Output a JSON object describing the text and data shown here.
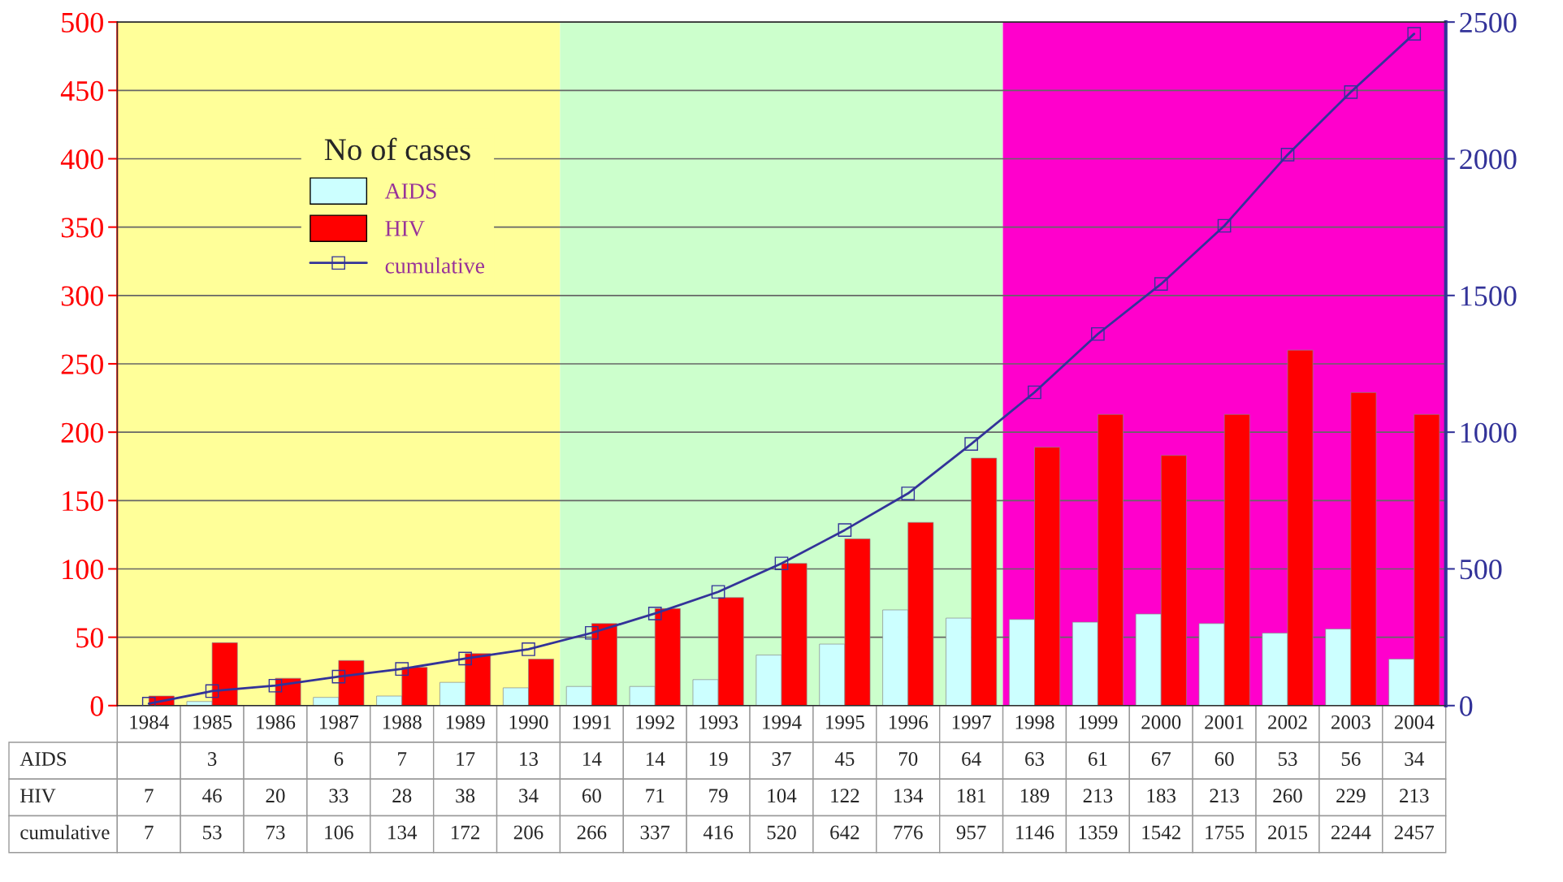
{
  "chart_data": {
    "type": "bar",
    "legend_title": "No of cases",
    "categories": [
      "1984",
      "1985",
      "1986",
      "1987",
      "1988",
      "1989",
      "1990",
      "1991",
      "1992",
      "1993",
      "1994",
      "1995",
      "1996",
      "1997",
      "1998",
      "1999",
      "2000",
      "2001",
      "2002",
      "2003",
      "2004"
    ],
    "series": [
      {
        "name": "AIDS",
        "color": "#ccffff",
        "values": [
          null,
          3,
          null,
          6,
          7,
          17,
          13,
          14,
          14,
          19,
          37,
          45,
          70,
          64,
          63,
          61,
          67,
          60,
          53,
          56,
          34
        ]
      },
      {
        "name": "HIV",
        "color": "#ff0000",
        "values": [
          7,
          46,
          20,
          33,
          28,
          38,
          34,
          60,
          71,
          79,
          104,
          122,
          134,
          181,
          189,
          213,
          183,
          213,
          260,
          229,
          213
        ]
      },
      {
        "name": "cumulative",
        "type": "line",
        "axis": "y2",
        "color": "#333399",
        "marker": "square",
        "line_style": "solid",
        "values": [
          7,
          53,
          73,
          106,
          134,
          172,
          206,
          266,
          337,
          416,
          520,
          642,
          776,
          957,
          1146,
          1359,
          1542,
          1755,
          2015,
          2244,
          2457
        ]
      }
    ],
    "ylim": [
      0,
      500
    ],
    "yticks": [
      0,
      50,
      100,
      150,
      200,
      250,
      300,
      350,
      400,
      450,
      500
    ],
    "y2lim": [
      0,
      2500
    ],
    "y2ticks": [
      0,
      500,
      1000,
      1500,
      2000,
      2500
    ],
    "bands": [
      {
        "axis": "x",
        "from": "1984",
        "to": "1990",
        "color": "#ffff99"
      },
      {
        "axis": "x",
        "from": "1991",
        "to": "1997",
        "color": "#ccffcc"
      },
      {
        "axis": "x",
        "from": "1998",
        "to": "2004",
        "color": "#ff00cc"
      }
    ],
    "grid": "y",
    "legend": "top left",
    "data_labels": true
  }
}
